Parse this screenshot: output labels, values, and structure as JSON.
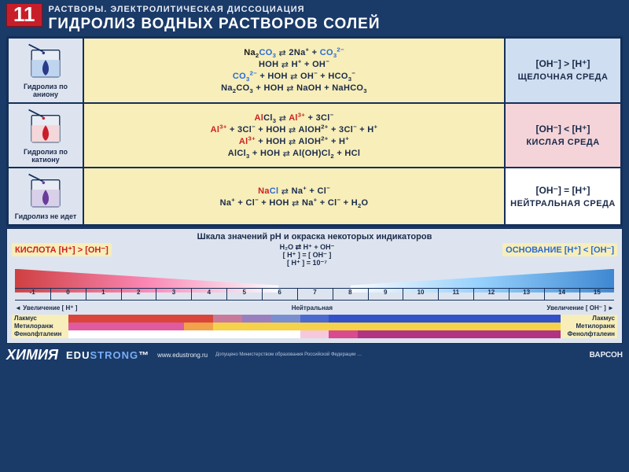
{
  "header": {
    "number": "11",
    "supertitle": "РАСТВОРЫ. ЭЛЕКТРОЛИТИЧЕСКАЯ ДИССОЦИАЦИЯ",
    "title": "ГИДРОЛИЗ ВОДНЫХ РАСТВОРОВ СОЛЕЙ"
  },
  "rows": [
    {
      "img_label": "Гидролиз по аниону",
      "drop_color": "#2a3a8a",
      "env_bg": "env-alk",
      "ineq": "[OH⁻] > [H⁺]",
      "env": "ЩЕЛОЧНАЯ СРЕДА"
    },
    {
      "img_label": "Гидролиз по катиону",
      "drop_color": "#c81e2a",
      "env_bg": "env-acid",
      "ineq": "[OH⁻] < [H⁺]",
      "env": "КИСЛАЯ СРЕДА"
    },
    {
      "img_label": "Гидролиз не идет",
      "drop_color": "#6a3d9a",
      "env_bg": "env-neu",
      "ineq": "[OH⁻] = [H⁺]",
      "env": "НЕЙТРАЛЬНАЯ СРЕДА"
    }
  ],
  "ph": {
    "title": "Шкала значений pH и окраска некоторых индикаторов",
    "eq1": "H₂O ⇄ H⁺ + OH⁻",
    "eq2": "[ H⁺ ] = [ OH⁻ ]",
    "eq3": "[ H⁺ ] = 10⁻⁷",
    "acid_label": "КИСЛОТА [H⁺] > [OH⁻]",
    "base_label": "ОСНОВАНИЕ [H⁺] < [OH⁻]",
    "ticks": [
      "-1",
      "0",
      "1",
      "2",
      "3",
      "4",
      "5",
      "6",
      "7",
      "8",
      "9",
      "10",
      "11",
      "12",
      "13",
      "14",
      "15"
    ],
    "left_arrow": "◄ Увеличение [ H⁺ ]",
    "mid": "Нейтральная",
    "right_arrow": "Увеличение [ OH⁻ ] ►"
  },
  "indicators": {
    "names": [
      "Лакмус",
      "Метилоранж",
      "Фенолфталеин"
    ],
    "litmus": [
      "#d9453a",
      "#d9453a",
      "#d9453a",
      "#d9453a",
      "#d9453a",
      "#c97a9a",
      "#9a7fbf",
      "#7a8fd0",
      "#4a6ad0",
      "#3352c7",
      "#3352c7",
      "#3352c7",
      "#3352c7",
      "#3352c7",
      "#3352c7",
      "#3352c7",
      "#3352c7"
    ],
    "methyl": [
      "#e05aa0",
      "#e05aa0",
      "#e05aa0",
      "#e05aa0",
      "#f2a24a",
      "#f6d24a",
      "#f6d24a",
      "#f6d24a",
      "#f6d24a",
      "#f6d24a",
      "#f6d24a",
      "#f6d24a",
      "#f6d24a",
      "#f6d24a",
      "#f6d24a",
      "#f6d24a",
      "#f6d24a"
    ],
    "phenol": [
      "#ffffff",
      "#ffffff",
      "#ffffff",
      "#ffffff",
      "#ffffff",
      "#ffffff",
      "#ffffff",
      "#ffffff",
      "#f6c8dc",
      "#da4a8f",
      "#b13384",
      "#b13384",
      "#b13384",
      "#b13384",
      "#b13384",
      "#b13384",
      "#b13384"
    ]
  },
  "footer": {
    "chem": "ХИМИЯ",
    "edu_a": "EDU",
    "edu_b": "STRONG",
    "url": "www.edustrong.ru",
    "fine": "Допущено Министерством образования Российской Федерации …",
    "varson": "ВАРСОН"
  }
}
